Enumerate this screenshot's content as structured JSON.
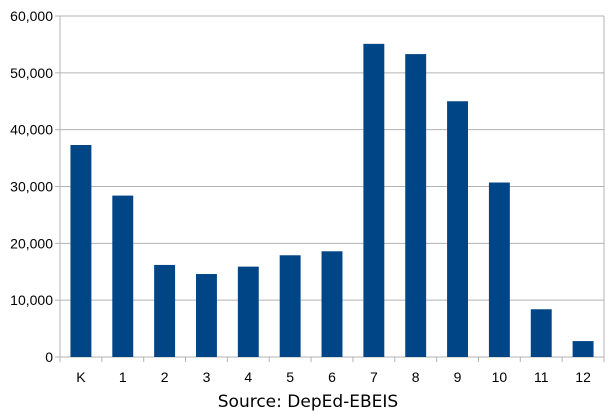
{
  "chart_data": {
    "type": "bar",
    "categories": [
      "K",
      "1",
      "2",
      "3",
      "4",
      "5",
      "6",
      "7",
      "8",
      "9",
      "10",
      "11",
      "12"
    ],
    "values": [
      37300,
      28400,
      16200,
      14600,
      15900,
      17900,
      18600,
      55100,
      53300,
      45000,
      30700,
      8400,
      2800
    ],
    "ylim": [
      0,
      60000
    ],
    "yticks": [
      0,
      10000,
      20000,
      30000,
      40000,
      50000,
      60000
    ],
    "ytick_labels": [
      "0",
      "10,000",
      "20,000",
      "30,000",
      "40,000",
      "50,000",
      "60,000"
    ],
    "grid": true,
    "legend": "none",
    "bar_color": "#004586",
    "grid_color": "#b3b3b3",
    "caption": "Source: DepEd-EBEIS"
  }
}
